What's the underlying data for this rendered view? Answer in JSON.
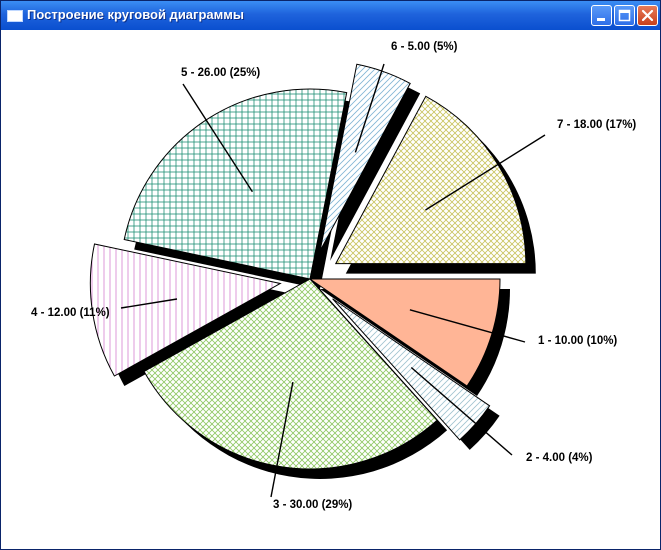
{
  "window": {
    "title": "Построение круговой диаграммы",
    "controls": {
      "minimize_icon": "minimize-icon",
      "maximize_icon": "maximize-icon",
      "close_icon": "close-icon"
    }
  },
  "chart_data": {
    "type": "pie",
    "exploded": true,
    "shadow": true,
    "slices": [
      {
        "id": 1,
        "value": 10.0,
        "percent": 10,
        "label": "1 - 10.00 (10%)",
        "fill": "#ffb596",
        "pattern": "solid"
      },
      {
        "id": 2,
        "value": 4.0,
        "percent": 4,
        "label": "2 - 4.00 (4%)",
        "fill": "#9fc2cf",
        "pattern": "diagonal"
      },
      {
        "id": 3,
        "value": 30.0,
        "percent": 29,
        "label": "3 - 30.00 (29%)",
        "fill": "#8ec763",
        "pattern": "diag-cross"
      },
      {
        "id": 4,
        "value": 12.0,
        "percent": 11,
        "label": "4 - 12.00 (11%)",
        "fill": "#d67ed0",
        "pattern": "vertical"
      },
      {
        "id": 5,
        "value": 26.0,
        "percent": 25,
        "label": "5 - 26.00 (25%)",
        "fill": "#1e8f74",
        "pattern": "cross"
      },
      {
        "id": 6,
        "value": 5.0,
        "percent": 5,
        "label": "6 - 5.00 (5%)",
        "fill": "#7fb4d4",
        "pattern": "diagonal"
      },
      {
        "id": 7,
        "value": 18.0,
        "percent": 17,
        "label": "7 - 18.00 (17%)",
        "fill": "#c9c45f",
        "pattern": "diag-cross"
      }
    ]
  }
}
